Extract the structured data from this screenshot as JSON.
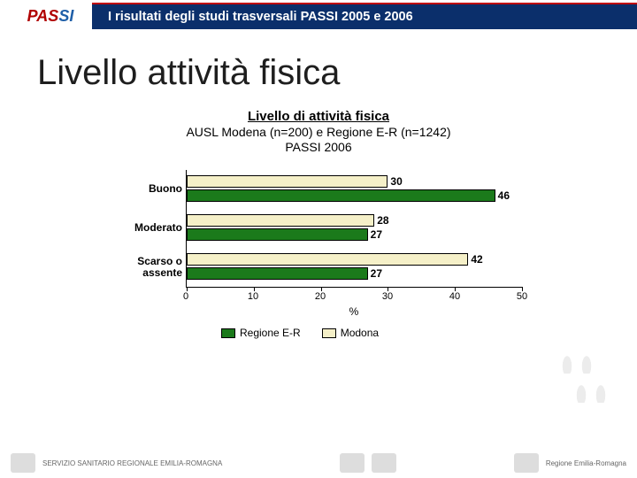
{
  "header": {
    "logo_text_1": "PAS",
    "logo_text_2": "SI",
    "banner": "I risultati degli studi trasversali  PASSI 2005 e 2006"
  },
  "slide_title": "Livello attività fisica",
  "chart": {
    "type": "bar",
    "orientation": "horizontal",
    "grouped": true,
    "title": "Livello di attività fisica",
    "subtitle1": "AUSL Modena (n=200) e Regione E-R (n=1242)",
    "subtitle2": "PASSI 2006",
    "categories": [
      "Buono",
      "Moderato",
      "Scarso o assente"
    ],
    "series": [
      {
        "name": "Regione E-R",
        "color": "#1b7a1b",
        "values": [
          46,
          27,
          27
        ]
      },
      {
        "name": "Modona",
        "color": "#f5f0c8",
        "values": [
          30,
          28,
          42
        ]
      }
    ],
    "xaxis": {
      "min": 0,
      "max": 50,
      "step": 10,
      "title": "%"
    },
    "value_label_fontsize": 12,
    "value_label_fontweight": "bold",
    "category_fontsize": 12,
    "category_fontweight": "bold",
    "bar_border_color": "#000000",
    "background_color": "#ffffff",
    "title_fontsize": 15,
    "subtitle_fontsize": 14
  },
  "legend": {
    "items": [
      {
        "label": "Regione E-R",
        "color": "#1b7a1b"
      },
      {
        "label": "Modona",
        "color": "#f5f0c8"
      }
    ]
  },
  "footer": {
    "left_text": "SERVIZIO SANITARIO REGIONALE EMILIA-ROMAGNA",
    "right_text": "Regione Emilia-Romagna"
  }
}
